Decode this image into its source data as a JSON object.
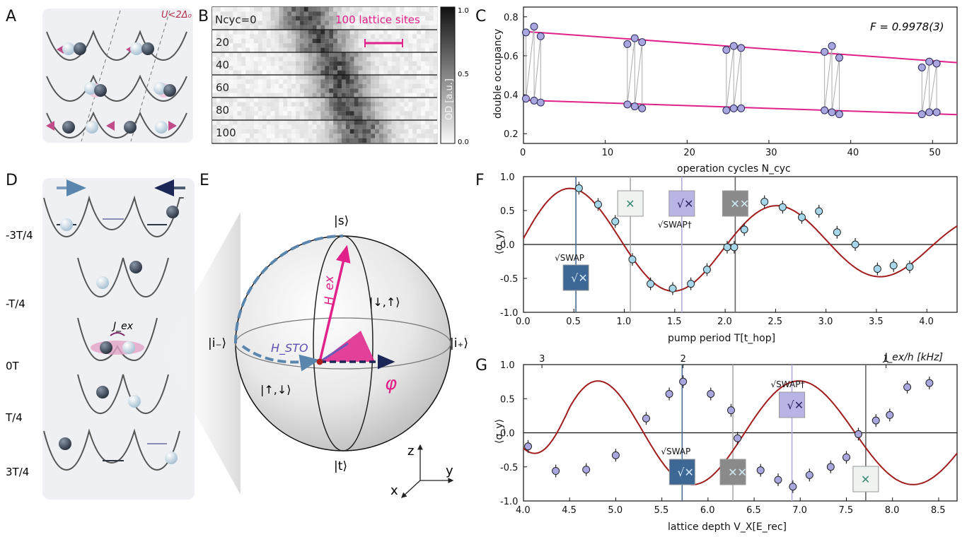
{
  "panels": {
    "A": "A",
    "B": "B",
    "C": "C",
    "D": "D",
    "E": "E",
    "F": "F",
    "G": "G"
  },
  "panelA": {
    "condition": "U<2Δ₀"
  },
  "panelB": {
    "rows": [
      "Ncyc=0",
      "20",
      "40",
      "60",
      "80",
      "100"
    ],
    "scale_label": "100 lattice sites",
    "colorbar_label": "OD [a.u.]",
    "colorbar_ticks": [
      "1.0",
      "0.5",
      "0.0"
    ]
  },
  "panelC": {
    "fidelity": "F = 0.9978(3)",
    "ylabel": "double occupancy",
    "xlabel": "operation cycles N_cyc",
    "xticks": [
      "0",
      "10",
      "20",
      "30",
      "40",
      "50"
    ],
    "yticks": [
      "0.8",
      "0.6",
      "0.4",
      "0.2"
    ]
  },
  "panelD": {
    "times": [
      "-3T/4",
      "-T/4",
      "0T",
      "T/4",
      "3T/4"
    ],
    "jex": "J_ex"
  },
  "panelE": {
    "s": "|s⟩",
    "t": "|t⟩",
    "im": "|i₋⟩",
    "ip": "|i₊⟩",
    "ud": "|↑,↓⟩",
    "du": "|↓,↑⟩",
    "hex": "H_ex",
    "hsto": "H_STO",
    "phi": "φ",
    "axes": {
      "z": "z",
      "y": "y",
      "x": "x"
    }
  },
  "panelF": {
    "ylabel": "⟨σ_y⟩",
    "xlabel": "pump period T[t_hop]",
    "xticks": [
      "0.0",
      "0.5",
      "1.0",
      "1.5",
      "2.0",
      "2.5",
      "3.0",
      "3.5",
      "4.0"
    ],
    "yticks": [
      "1.0",
      "0.5",
      "0.0",
      "-0.5",
      "-1.0"
    ],
    "sqrt_swap": "√SWAP",
    "sqrt_swap_dag": "√SWAP†"
  },
  "panelG": {
    "ylabel": "⟨σ_y⟩",
    "xlabel": "lattice depth V_X[E_rec]",
    "top_label": "J_ex/h [kHz]",
    "xticks": [
      "4.0",
      "4.5",
      "5.0",
      "5.5",
      "6.0",
      "6.5",
      "7.0",
      "7.5",
      "8.0",
      "8.5"
    ],
    "top_ticks": [
      "3",
      "2",
      "1"
    ],
    "yticks": [
      "1.0",
      "0.5",
      "0.0",
      "-0.5",
      "-1.0"
    ],
    "sqrt_swap": "√SWAP",
    "sqrt_swap_dag": "√SWAP†"
  },
  "chart_data": [
    {
      "type": "scatter",
      "panel": "C",
      "xlim": [
        0,
        53
      ],
      "ylim": [
        0.15,
        0.85
      ],
      "series": [
        {
          "name": "upper",
          "x": [
            0.3,
            1.3,
            2.1,
            12.7,
            13.6,
            14.5,
            24.8,
            25.7,
            26.6,
            36.8,
            37.7,
            38.6,
            48.7,
            49.6,
            50.5
          ],
          "values": [
            0.72,
            0.75,
            0.7,
            0.66,
            0.69,
            0.67,
            0.63,
            0.65,
            0.64,
            0.62,
            0.65,
            0.59,
            0.54,
            0.57,
            0.56
          ]
        },
        {
          "name": "lower",
          "x": [
            0.3,
            1.3,
            2.1,
            12.7,
            13.6,
            14.5,
            24.8,
            25.7,
            26.6,
            36.8,
            37.7,
            38.6,
            48.7,
            49.6,
            50.5
          ],
          "values": [
            0.38,
            0.37,
            0.36,
            0.35,
            0.34,
            0.33,
            0.32,
            0.33,
            0.33,
            0.32,
            0.31,
            0.3,
            0.3,
            0.31,
            0.31
          ]
        }
      ],
      "fits": [
        {
          "y0": 0.725,
          "y1": 0.565
        },
        {
          "y0": 0.372,
          "y1": 0.298
        }
      ]
    },
    {
      "type": "scatter",
      "panel": "F",
      "xlim": [
        0,
        4.3
      ],
      "ylim": [
        -1.0,
        1.0
      ],
      "x": [
        0.55,
        0.74,
        0.91,
        1.08,
        1.26,
        1.48,
        1.66,
        1.82,
        2.02,
        2.09,
        2.19,
        2.39,
        2.57,
        2.76,
        2.93,
        3.11,
        3.29,
        3.51,
        3.67,
        3.83
      ],
      "values": [
        0.83,
        0.59,
        0.34,
        -0.22,
        -0.58,
        -0.65,
        -0.58,
        -0.37,
        -0.04,
        -0.04,
        0.22,
        0.63,
        0.55,
        0.4,
        0.49,
        0.18,
        0.0,
        -0.36,
        -0.31,
        -0.33
      ],
      "markers": [
        0.52,
        1.06,
        1.57,
        2.1
      ]
    },
    {
      "type": "scatter",
      "panel": "G",
      "xlim": [
        4.0,
        8.7
      ],
      "ylim": [
        -1.0,
        1.0
      ],
      "x": [
        4.05,
        4.35,
        4.68,
        5.0,
        5.33,
        5.58,
        5.73,
        6.03,
        6.25,
        6.32,
        6.57,
        6.76,
        6.92,
        7.1,
        7.33,
        7.5,
        7.63,
        7.82,
        7.97,
        8.16,
        8.4
      ],
      "values": [
        -0.2,
        -0.56,
        -0.54,
        -0.33,
        0.21,
        0.57,
        0.75,
        0.57,
        0.33,
        -0.08,
        -0.55,
        -0.69,
        -0.79,
        -0.62,
        -0.5,
        -0.36,
        -0.02,
        0.18,
        0.26,
        0.67,
        0.73
      ],
      "markers": [
        5.72,
        6.27,
        6.91,
        7.71
      ]
    }
  ]
}
